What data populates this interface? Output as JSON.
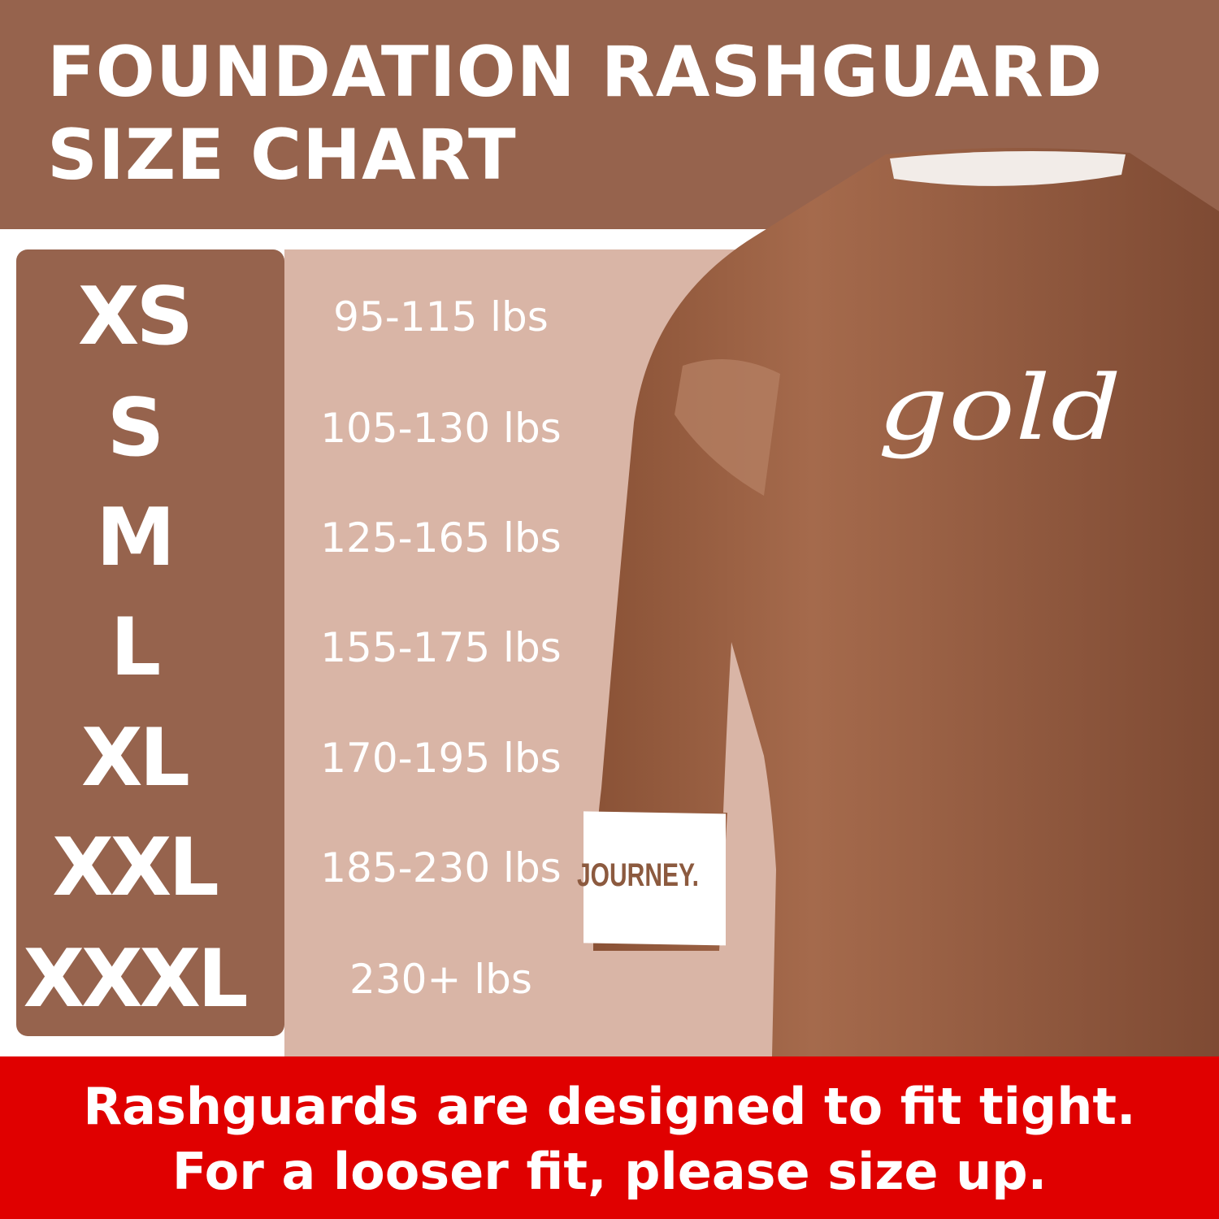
{
  "header": {
    "title_line1": "FOUNDATION RASHGUARD",
    "title_line2": "SIZE CHART"
  },
  "size_chart": [
    {
      "size": "XS",
      "weight": "95-115 lbs"
    },
    {
      "size": "S",
      "weight": "105-130 lbs"
    },
    {
      "size": "M",
      "weight": "125-165 lbs"
    },
    {
      "size": "L",
      "weight": "155-175 lbs"
    },
    {
      "size": "XL",
      "weight": "170-195 lbs"
    },
    {
      "size": "XXL",
      "weight": "185-230 lbs"
    },
    {
      "size": "XXXL",
      "weight": "230+ lbs"
    }
  ],
  "product_image": {
    "chest_logo": "gold",
    "sleeve_band_text": "JOURNEY."
  },
  "banner": {
    "line1": "Rashguards are designed to fit tight.",
    "line2": "For a looser fit, please size up."
  },
  "colors": {
    "brown": "#96634d",
    "pink": "#d9b5a6",
    "red": "#e00000",
    "shirt": "#9a5f42"
  }
}
